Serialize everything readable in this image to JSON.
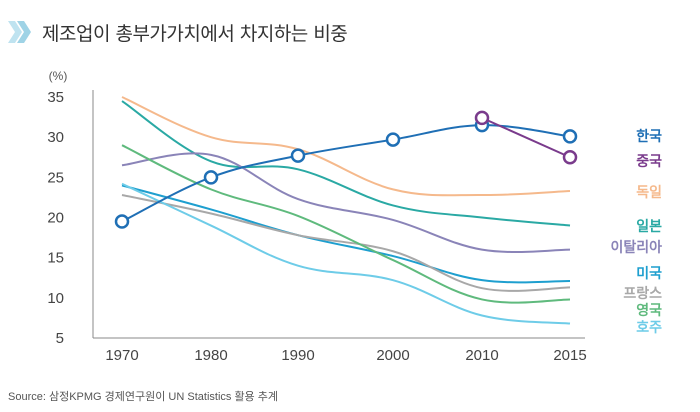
{
  "header": {
    "title": "제조업이 총부가가치에서 차지하는 비중",
    "icon": "double-chevron-right-icon",
    "icon_color": "#9fd3e6"
  },
  "source": "Source: 삼정KPMG 경제연구원이 UN Statistics 활용 추계",
  "chart_data": {
    "type": "line",
    "unit_label": "(%)",
    "x_ticks": [
      "1970",
      "1980",
      "1990",
      "2000",
      "2010",
      "2015"
    ],
    "y_ticks": [
      "35",
      "30",
      "25",
      "20",
      "15",
      "10",
      "5"
    ],
    "ylim": [
      5,
      35
    ],
    "grid": false,
    "legend_position": "right",
    "series": [
      {
        "name": "한국",
        "color": "#1f6fb5",
        "markers": true,
        "points": [
          [
            1970,
            19.5
          ],
          [
            1980,
            25
          ],
          [
            1990,
            27.7
          ],
          [
            2000,
            29.7
          ],
          [
            2010,
            31.5
          ],
          [
            2015,
            30.1
          ]
        ]
      },
      {
        "name": "중국",
        "color": "#7a3b8c",
        "markers": true,
        "points": [
          [
            2010,
            32.4
          ],
          [
            2015,
            27.5
          ]
        ]
      },
      {
        "name": "독일",
        "color": "#f5b98c",
        "markers": false,
        "points": [
          [
            1970,
            35
          ],
          [
            1980,
            30
          ],
          [
            1990,
            28.5
          ],
          [
            2000,
            23.5
          ],
          [
            2010,
            22.8
          ],
          [
            2015,
            23.3
          ]
        ]
      },
      {
        "name": "일본",
        "color": "#2aa9a4",
        "markers": false,
        "points": [
          [
            1970,
            34.5
          ],
          [
            1980,
            27
          ],
          [
            1990,
            26
          ],
          [
            2000,
            21.5
          ],
          [
            2010,
            20
          ],
          [
            2015,
            19
          ]
        ]
      },
      {
        "name": "이탈리아",
        "color": "#8a84b8",
        "markers": false,
        "points": [
          [
            1970,
            26.5
          ],
          [
            1980,
            27.8
          ],
          [
            1990,
            22.3
          ],
          [
            2000,
            19.7
          ],
          [
            2010,
            16
          ],
          [
            2015,
            16
          ]
        ]
      },
      {
        "name": "미국",
        "color": "#1e9fcf",
        "markers": false,
        "points": [
          [
            1970,
            24
          ],
          [
            1980,
            21
          ],
          [
            1990,
            17.8
          ],
          [
            2000,
            15.2
          ],
          [
            2010,
            12.2
          ],
          [
            2015,
            12.1
          ]
        ]
      },
      {
        "name": "프랑스",
        "color": "#a8a8a8",
        "markers": false,
        "points": [
          [
            1970,
            22.8
          ],
          [
            1980,
            20.5
          ],
          [
            1990,
            17.8
          ],
          [
            2000,
            15.8
          ],
          [
            2010,
            11.2
          ],
          [
            2015,
            11.3
          ]
        ]
      },
      {
        "name": "영국",
        "color": "#5fba7d",
        "markers": false,
        "points": [
          [
            1970,
            29
          ],
          [
            1980,
            23.5
          ],
          [
            1990,
            20.2
          ],
          [
            2000,
            14.7
          ],
          [
            2010,
            9.8
          ],
          [
            2015,
            9.8
          ]
        ]
      },
      {
        "name": "호주",
        "color": "#6ecce8",
        "markers": false,
        "points": [
          [
            1970,
            24.2
          ],
          [
            1980,
            19
          ],
          [
            1990,
            14
          ],
          [
            2000,
            12.2
          ],
          [
            2010,
            7.8
          ],
          [
            2015,
            6.8
          ]
        ]
      }
    ]
  }
}
